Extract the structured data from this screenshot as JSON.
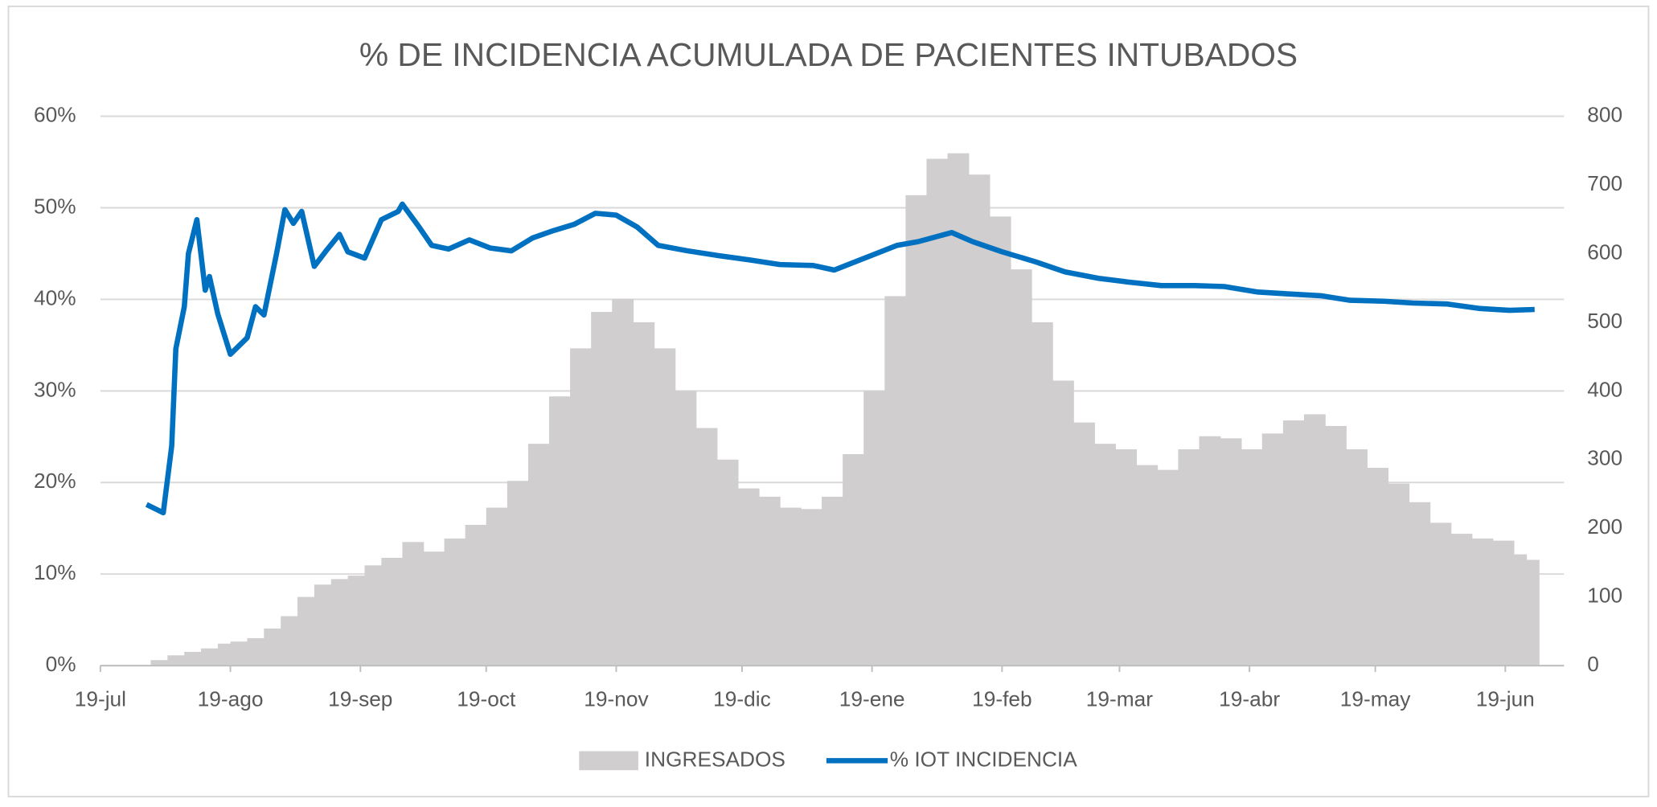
{
  "chart_data": {
    "type": "bar-line",
    "title": "% DE INCIDENCIA ACUMULADA DE PACIENTES INTUBADOS",
    "xlim": [
      0,
      349
    ],
    "xticks": [
      {
        "value": 0,
        "label": "19-jul"
      },
      {
        "value": 31,
        "label": "19-ago"
      },
      {
        "value": 62,
        "label": "19-sep"
      },
      {
        "value": 92,
        "label": "19-oct"
      },
      {
        "value": 123,
        "label": "19-nov"
      },
      {
        "value": 153,
        "label": "19-dic"
      },
      {
        "value": 184,
        "label": "19-ene"
      },
      {
        "value": 215,
        "label": "19-feb"
      },
      {
        "value": 243,
        "label": "19-mar"
      },
      {
        "value": 274,
        "label": "19-abr"
      },
      {
        "value": 304,
        "label": "19-may"
      },
      {
        "value": 335,
        "label": "19-jun"
      }
    ],
    "ylim": [
      0,
      60
    ],
    "yticks": [
      {
        "value": 0,
        "label": "0%"
      },
      {
        "value": 10,
        "label": "10%"
      },
      {
        "value": 20,
        "label": "20%"
      },
      {
        "value": 30,
        "label": "30%"
      },
      {
        "value": 40,
        "label": "40%"
      },
      {
        "value": 50,
        "label": "50%"
      },
      {
        "value": 60,
        "label": "60%"
      }
    ],
    "y2lim": [
      0,
      800
    ],
    "y2ticks": [
      0,
      100,
      200,
      300,
      400,
      500,
      600,
      700,
      800
    ],
    "grid": true,
    "legend": "bottom",
    "series": [
      {
        "name": "INGRESADOS",
        "type": "bar",
        "axis": "y2",
        "color": "#d0cece",
        "x": [
          12,
          16,
          20,
          24,
          28,
          31,
          35,
          39,
          43,
          47,
          51,
          55,
          59,
          63,
          67,
          72,
          77,
          82,
          87,
          92,
          97,
          102,
          107,
          112,
          117,
          122,
          127,
          132,
          137,
          142,
          147,
          152,
          157,
          162,
          167,
          172,
          177,
          182,
          187,
          192,
          197,
          202,
          207,
          212,
          217,
          222,
          227,
          232,
          237,
          242,
          247,
          252,
          257,
          262,
          267,
          272,
          277,
          282,
          287,
          292,
          297,
          302,
          307,
          312,
          317,
          322,
          327,
          332,
          337,
          340
        ],
        "values": [
          8,
          15,
          20,
          25,
          32,
          35,
          40,
          54,
          72,
          100,
          118,
          126,
          131,
          146,
          157,
          180,
          166,
          185,
          205,
          230,
          269,
          323,
          392,
          462,
          515,
          534,
          500,
          462,
          400,
          346,
          300,
          258,
          246,
          230,
          228,
          246,
          308,
          400,
          538,
          685,
          738,
          746,
          715,
          654,
          577,
          500,
          415,
          354,
          323,
          315,
          292,
          285,
          315,
          334,
          331,
          315,
          338,
          357,
          366,
          349,
          315,
          288,
          265,
          238,
          208,
          192,
          185,
          182,
          162,
          154
        ]
      },
      {
        "name": "% IOT INCIDENCIA",
        "type": "line",
        "axis": "y",
        "color": "#0070c0",
        "x": [
          11,
          15,
          17,
          18,
          20,
          21,
          23,
          25,
          26,
          28,
          31,
          35,
          37,
          39,
          42,
          44,
          46,
          48,
          51,
          54,
          57,
          59,
          63,
          67,
          71,
          72,
          76,
          79,
          83,
          88,
          93,
          98,
          103,
          108,
          113,
          118,
          123,
          128,
          133,
          140,
          147,
          155,
          162,
          170,
          175,
          180,
          185,
          190,
          195,
          203,
          208,
          215,
          223,
          230,
          238,
          245,
          253,
          261,
          268,
          276,
          283,
          291,
          298,
          306,
          313,
          321,
          329,
          336,
          342
        ],
        "values": [
          17.6,
          16.7,
          24,
          34.6,
          39.2,
          45,
          48.7,
          41,
          42.5,
          38.4,
          34,
          35.8,
          39.2,
          38.3,
          45,
          49.8,
          48.3,
          49.6,
          43.6,
          45.4,
          47.1,
          45.2,
          44.5,
          48.7,
          49.6,
          50.4,
          47.9,
          45.9,
          45.5,
          46.5,
          45.6,
          45.3,
          46.7,
          47.5,
          48.2,
          49.4,
          49.2,
          47.9,
          45.9,
          45.3,
          44.8,
          44.3,
          43.8,
          43.7,
          43.2,
          44.1,
          45,
          45.9,
          46.3,
          47.3,
          46.3,
          45.2,
          44.1,
          43,
          42.3,
          41.9,
          41.5,
          41.5,
          41.4,
          40.8,
          40.6,
          40.4,
          39.9,
          39.8,
          39.6,
          39.5,
          39,
          38.8,
          38.9
        ]
      }
    ]
  }
}
